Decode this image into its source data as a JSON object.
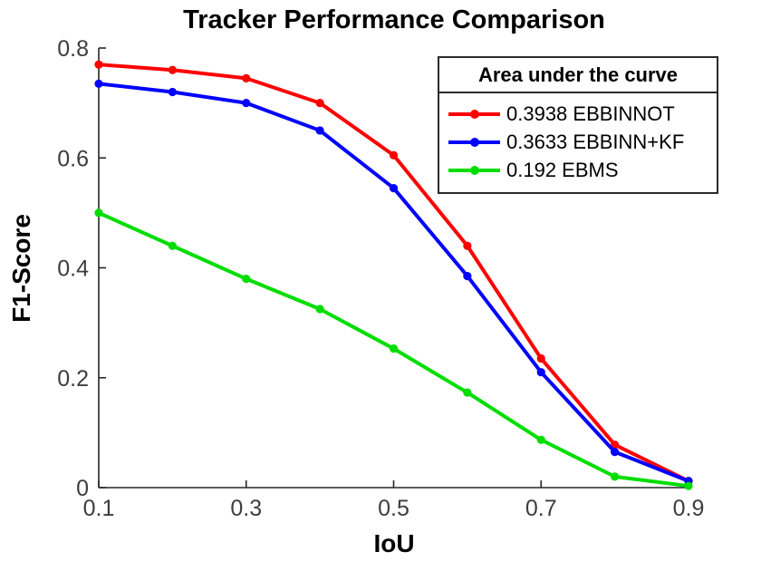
{
  "title": "Tracker Performance Comparison",
  "chart_data": {
    "type": "line",
    "x": [
      0.1,
      0.2,
      0.3,
      0.4,
      0.5,
      0.6,
      0.7,
      0.8,
      0.9
    ],
    "series": [
      {
        "name": "EBBINNOT",
        "auc": "0.3938",
        "legend_label": "0.3938 EBBINNOT",
        "color": "#ff0000",
        "values": [
          0.77,
          0.76,
          0.745,
          0.7,
          0.605,
          0.44,
          0.235,
          0.078,
          0.012
        ]
      },
      {
        "name": "EBBINN+KF",
        "auc": "0.3633",
        "legend_label": "0.3633 EBBINN+KF",
        "color": "#0000ff",
        "values": [
          0.735,
          0.72,
          0.7,
          0.65,
          0.545,
          0.385,
          0.21,
          0.065,
          0.012
        ]
      },
      {
        "name": "EBMS",
        "auc": "0.192",
        "legend_label": "0.192 EBMS",
        "color": "#00dd00",
        "values": [
          0.5,
          0.44,
          0.38,
          0.325,
          0.253,
          0.173,
          0.087,
          0.02,
          0.003
        ]
      }
    ],
    "xlabel": "IoU",
    "ylabel": "F1-Score",
    "xlim": [
      0.1,
      0.9
    ],
    "ylim": [
      0,
      0.8
    ],
    "xticks": [
      0.1,
      0.3,
      0.5,
      0.7,
      0.9
    ],
    "xtick_labels": [
      "0.1",
      "0.3",
      "0.5",
      "0.7",
      "0.9"
    ],
    "yticks": [
      0,
      0.2,
      0.4,
      0.6,
      0.8
    ],
    "ytick_labels": [
      "0",
      "0.2",
      "0.4",
      "0.6",
      "0.8"
    ],
    "grid": false,
    "legend": {
      "title": "Area under the curve",
      "position": "top-right"
    },
    "axis_color": "#262626",
    "tick_label_color": "#3d3d3d"
  }
}
